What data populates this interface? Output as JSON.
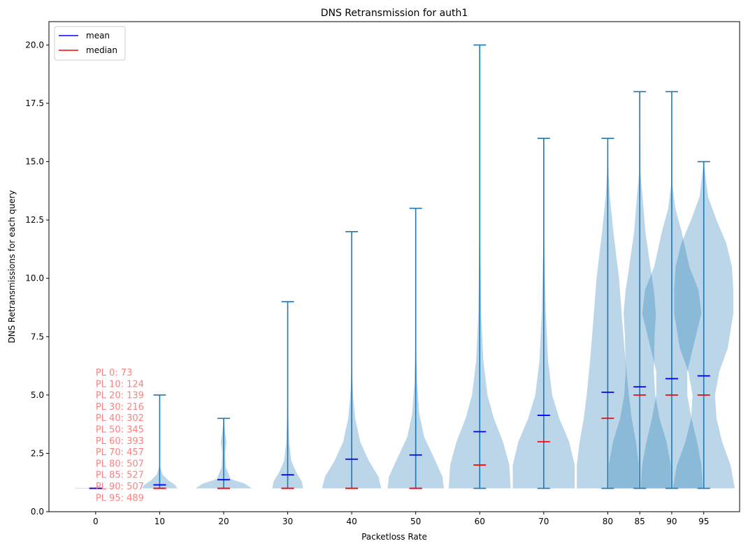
{
  "chart_data": {
    "type": "violin",
    "title": "DNS Retransmission for auth1",
    "xlabel": "Packetloss Rate",
    "ylabel": "DNS Retransmissions for each query",
    "ylim": [
      0,
      21
    ],
    "yticks": [
      "0.0",
      "2.5",
      "5.0",
      "7.5",
      "10.0",
      "12.5",
      "15.0",
      "17.5",
      "20.0"
    ],
    "grid": false,
    "legend": {
      "position": "top-left",
      "entries": [
        {
          "label": "mean",
          "color": "#0000ff"
        },
        {
          "label": "median",
          "color": "#ff0000"
        }
      ]
    },
    "colors": {
      "body": "#1f77b4",
      "body_alpha": 0.3,
      "lines": "#1f77b4",
      "mean": "#0000ff",
      "median": "#ff0000",
      "annotation": "#ff7f7f"
    },
    "violins": [
      {
        "x": 0,
        "label": "0",
        "min": 1,
        "max": 1,
        "mean": 1.0,
        "median": 1,
        "n": 73,
        "shape": [
          [
            1,
            0.3
          ],
          [
            1.02,
            0.3
          ]
        ]
      },
      {
        "x": 10,
        "label": "10",
        "min": 1,
        "max": 5,
        "mean": 1.15,
        "median": 1,
        "n": 124,
        "shape": [
          [
            1.0,
            0.25
          ],
          [
            1.15,
            0.22
          ],
          [
            1.35,
            0.12
          ],
          [
            1.6,
            0.04
          ],
          [
            2.0,
            0.0
          ]
        ]
      },
      {
        "x": 20,
        "label": "20",
        "min": 1,
        "max": 4,
        "mean": 1.37,
        "median": 1,
        "n": 139,
        "shape": [
          [
            1.0,
            0.4
          ],
          [
            1.2,
            0.3
          ],
          [
            1.4,
            0.1
          ],
          [
            1.9,
            0.03
          ],
          [
            2.5,
            0.02
          ],
          [
            3.0,
            0.04
          ],
          [
            3.4,
            0.02
          ],
          [
            4.0,
            0.0
          ]
        ]
      },
      {
        "x": 30,
        "label": "30",
        "min": 1,
        "max": 9,
        "mean": 1.58,
        "median": 1,
        "n": 216,
        "shape": [
          [
            1.0,
            0.22
          ],
          [
            1.3,
            0.2
          ],
          [
            1.7,
            0.12
          ],
          [
            2.2,
            0.05
          ],
          [
            3.0,
            0.02
          ],
          [
            4.5,
            0.005
          ],
          [
            9.0,
            0.0
          ]
        ]
      },
      {
        "x": 40,
        "label": "40",
        "min": 1,
        "max": 12,
        "mean": 2.25,
        "median": 1,
        "n": 302,
        "shape": [
          [
            1.0,
            0.42
          ],
          [
            1.5,
            0.38
          ],
          [
            2.2,
            0.24
          ],
          [
            3.0,
            0.12
          ],
          [
            4.0,
            0.05
          ],
          [
            5.0,
            0.02
          ],
          [
            6.0,
            0.005
          ],
          [
            12.0,
            0.0
          ]
        ]
      },
      {
        "x": 50,
        "label": "50",
        "min": 1,
        "max": 13,
        "mean": 2.43,
        "median": 1,
        "n": 345,
        "shape": [
          [
            1.0,
            0.4
          ],
          [
            1.5,
            0.38
          ],
          [
            2.3,
            0.26
          ],
          [
            3.2,
            0.12
          ],
          [
            4.2,
            0.05
          ],
          [
            5.5,
            0.02
          ],
          [
            7.0,
            0.005
          ],
          [
            13.0,
            0.0
          ]
        ]
      },
      {
        "x": 60,
        "label": "60",
        "min": 1,
        "max": 20,
        "mean": 3.43,
        "median": 2,
        "n": 393,
        "shape": [
          [
            1.0,
            0.44
          ],
          [
            2.0,
            0.42
          ],
          [
            3.0,
            0.33
          ],
          [
            4.0,
            0.2
          ],
          [
            5.0,
            0.11
          ],
          [
            6.5,
            0.05
          ],
          [
            8.5,
            0.02
          ],
          [
            12.0,
            0.005
          ],
          [
            20.0,
            0.0
          ]
        ]
      },
      {
        "x": 70,
        "label": "70",
        "min": 1,
        "max": 16,
        "mean": 4.13,
        "median": 3,
        "n": 457,
        "shape": [
          [
            1.0,
            0.44
          ],
          [
            2.0,
            0.44
          ],
          [
            3.0,
            0.36
          ],
          [
            4.0,
            0.22
          ],
          [
            5.0,
            0.12
          ],
          [
            6.5,
            0.06
          ],
          [
            8.5,
            0.03
          ],
          [
            11.0,
            0.01
          ],
          [
            14.0,
            0.003
          ],
          [
            16.0,
            0.0
          ]
        ]
      },
      {
        "x": 80,
        "label": "80",
        "min": 1,
        "max": 16,
        "mean": 5.12,
        "median": 4,
        "n": 507,
        "shape": [
          [
            1.0,
            0.44
          ],
          [
            2.0,
            0.44
          ],
          [
            3.0,
            0.4
          ],
          [
            4.0,
            0.34
          ],
          [
            5.0,
            0.3
          ],
          [
            6.5,
            0.25
          ],
          [
            8.0,
            0.21
          ],
          [
            10.0,
            0.16
          ],
          [
            12.0,
            0.08
          ],
          [
            13.5,
            0.03
          ],
          [
            14.5,
            0.01
          ],
          [
            16.0,
            0.0
          ]
        ]
      },
      {
        "x": 85,
        "label": "85",
        "min": 1,
        "max": 18,
        "mean": 5.35,
        "median": 5,
        "n": 527,
        "shape": [
          [
            1.0,
            0.44
          ],
          [
            2.0,
            0.44
          ],
          [
            3.0,
            0.38
          ],
          [
            4.0,
            0.28
          ],
          [
            5.0,
            0.22
          ],
          [
            6.0,
            0.2
          ],
          [
            7.5,
            0.21
          ],
          [
            8.5,
            0.23
          ],
          [
            9.5,
            0.2
          ],
          [
            10.5,
            0.15
          ],
          [
            12.0,
            0.08
          ],
          [
            13.5,
            0.04
          ],
          [
            14.5,
            0.01
          ],
          [
            18.0,
            0.0
          ]
        ]
      },
      {
        "x": 90,
        "label": "90",
        "min": 1,
        "max": 18,
        "mean": 5.7,
        "median": 5,
        "n": 507,
        "shape": [
          [
            1.0,
            0.44
          ],
          [
            2.0,
            0.42
          ],
          [
            3.0,
            0.36
          ],
          [
            4.0,
            0.28
          ],
          [
            5.0,
            0.22
          ],
          [
            6.0,
            0.22
          ],
          [
            7.5,
            0.34
          ],
          [
            8.5,
            0.42
          ],
          [
            9.5,
            0.38
          ],
          [
            10.5,
            0.25
          ],
          [
            12.0,
            0.14
          ],
          [
            13.0,
            0.05
          ],
          [
            14.0,
            0.01
          ],
          [
            18.0,
            0.0
          ]
        ]
      },
      {
        "x": 95,
        "label": "95",
        "min": 1,
        "max": 15,
        "mean": 5.82,
        "median": 5,
        "n": 489,
        "shape": [
          [
            1.0,
            0.44
          ],
          [
            2.0,
            0.38
          ],
          [
            3.0,
            0.26
          ],
          [
            4.0,
            0.18
          ],
          [
            5.0,
            0.16
          ],
          [
            6.0,
            0.22
          ],
          [
            7.0,
            0.34
          ],
          [
            8.5,
            0.42
          ],
          [
            9.5,
            0.42
          ],
          [
            10.5,
            0.4
          ],
          [
            11.5,
            0.32
          ],
          [
            12.5,
            0.18
          ],
          [
            13.5,
            0.06
          ],
          [
            15.0,
            0.0
          ]
        ]
      }
    ],
    "annotations": [
      "PL 0: 73",
      "PL 10: 124",
      "PL 20: 139",
      "PL 30: 216",
      "PL 40: 302",
      "PL 50: 345",
      "PL 60: 393",
      "PL 70: 457",
      "PL 80: 507",
      "PL 85: 527",
      "PL 90: 507",
      "PL 95: 489"
    ]
  }
}
